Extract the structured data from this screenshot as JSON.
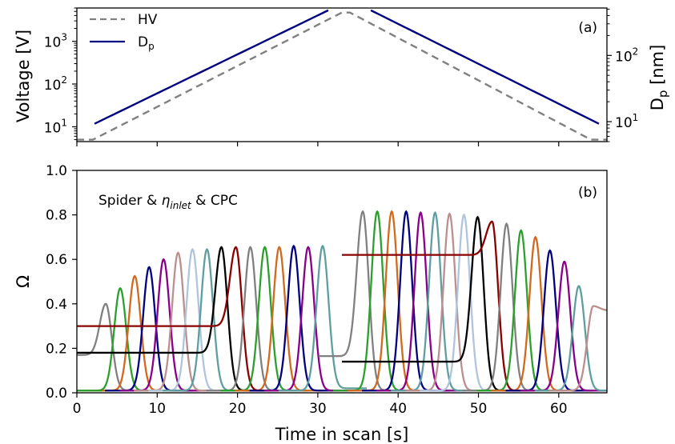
{
  "chart_data": [
    {
      "panel_label": "(a)",
      "type": "line",
      "xlim": [
        0,
        66
      ],
      "y_scale": "log",
      "ylim": [
        4.5,
        6000
      ],
      "ylabel": "Voltage [V]",
      "y_ticks": [
        {
          "value": 10,
          "base": "10",
          "exp": "1"
        },
        {
          "value": 100,
          "base": "10",
          "exp": "2"
        },
        {
          "value": 1000,
          "base": "10",
          "exp": "3"
        }
      ],
      "y2_scale": "log",
      "y2lim": [
        5.0,
        520
      ],
      "y2label": "D",
      "y2label_sub": "p",
      "y2label_unit": " [nm]",
      "y2_ticks": [
        {
          "value": 10,
          "base": "10",
          "exp": "1"
        },
        {
          "value": 100,
          "base": "10",
          "exp": "2"
        }
      ],
      "x_ticks": [
        0,
        10,
        20,
        30,
        40,
        50,
        60
      ],
      "legend": {
        "position": "top-left"
      },
      "series": [
        {
          "name": "HV",
          "style": "dashed",
          "color": "#808080",
          "axis": "left",
          "x": [
            0,
            2,
            33,
            34,
            64,
            66
          ],
          "y": [
            5,
            5,
            4700,
            4700,
            5,
            5
          ]
        },
        {
          "name": "D",
          "name_sub": "p",
          "style": "solid",
          "color": "#000080",
          "axis": "right",
          "segments": [
            {
              "x": [
                2.2,
                31.3
              ],
              "y": [
                9.3,
                480
              ]
            },
            {
              "x": [
                36.6,
                65
              ],
              "y": [
                480,
                9.3
              ]
            }
          ]
        }
      ]
    },
    {
      "panel_label": "(b)",
      "type": "line",
      "annotation": {
        "pre": "Spider & ",
        "symbol": "η",
        "sub": "inlet",
        "post": " & CPC"
      },
      "xlim": [
        0,
        66
      ],
      "ylim": [
        0,
        1.0
      ],
      "xlabel": "Time in scan [s]",
      "ylabel": "Ω",
      "x_ticks": [
        0,
        10,
        20,
        30,
        40,
        50,
        60
      ],
      "y_ticks": [
        "0.0",
        "0.2",
        "0.4",
        "0.6",
        "0.8",
        "1.0"
      ],
      "peak_width_s": 0.75,
      "series": [
        {
          "color": "#808080",
          "center": 3.6,
          "peak": 0.4,
          "left": 0.17
        },
        {
          "color": "#2ca02c",
          "center": 5.4,
          "peak": 0.47
        },
        {
          "color": "#d2691e",
          "center": 7.2,
          "peak": 0.525
        },
        {
          "color": "#000080",
          "center": 9.0,
          "peak": 0.565
        },
        {
          "color": "#8b008b",
          "center": 10.8,
          "peak": 0.6
        },
        {
          "color": "#bc8f8f",
          "center": 12.6,
          "peak": 0.63
        },
        {
          "color": "#b0c4de",
          "center": 14.4,
          "peak": 0.645
        },
        {
          "color": "#5f9ea0",
          "center": 16.2,
          "peak": 0.645
        },
        {
          "color": "#000000",
          "center": 18.0,
          "peak": 0.655,
          "left": 0.18
        },
        {
          "color": "#8b0000",
          "center": 19.8,
          "peak": 0.655,
          "left": 0.3
        },
        {
          "color": "#808080",
          "center": 21.6,
          "peak": 0.655
        },
        {
          "color": "#2ca02c",
          "center": 23.4,
          "peak": 0.655
        },
        {
          "color": "#d2691e",
          "center": 25.2,
          "peak": 0.655
        },
        {
          "color": "#000080",
          "center": 27.0,
          "peak": 0.66
        },
        {
          "color": "#8b008b",
          "center": 28.8,
          "peak": 0.655
        },
        {
          "color": "#5f9ea0",
          "center": 30.6,
          "peak": 0.66,
          "right": 0.02
        },
        {
          "color": "#808080",
          "center": 35.6,
          "peak": 0.815,
          "left": 0.165
        },
        {
          "color": "#2ca02c",
          "center": 37.4,
          "peak": 0.815
        },
        {
          "color": "#d2691e",
          "center": 39.2,
          "peak": 0.815
        },
        {
          "color": "#000080",
          "center": 41.0,
          "peak": 0.815
        },
        {
          "color": "#8b008b",
          "center": 42.8,
          "peak": 0.81
        },
        {
          "color": "#5f9ea0",
          "center": 44.6,
          "peak": 0.81
        },
        {
          "color": "#bc8f8f",
          "center": 46.4,
          "peak": 0.805
        },
        {
          "color": "#b0c4de",
          "center": 48.2,
          "peak": 0.8
        },
        {
          "color": "#000000",
          "center": 49.9,
          "peak": 0.79,
          "left": 0.14
        },
        {
          "color": "#8b0000",
          "center": 51.7,
          "peak": 0.77,
          "left": 0.62
        },
        {
          "color": "#808080",
          "center": 53.5,
          "peak": 0.76
        },
        {
          "color": "#2ca02c",
          "center": 55.3,
          "peak": 0.73
        },
        {
          "color": "#d2691e",
          "center": 57.1,
          "peak": 0.7
        },
        {
          "color": "#000080",
          "center": 58.9,
          "peak": 0.64
        },
        {
          "color": "#8b008b",
          "center": 60.7,
          "peak": 0.59
        },
        {
          "color": "#5f9ea0",
          "center": 62.5,
          "peak": 0.48
        },
        {
          "color": "#bc8f8f",
          "center": 64.3,
          "peak": 0.39,
          "right": 0.37
        }
      ]
    }
  ]
}
